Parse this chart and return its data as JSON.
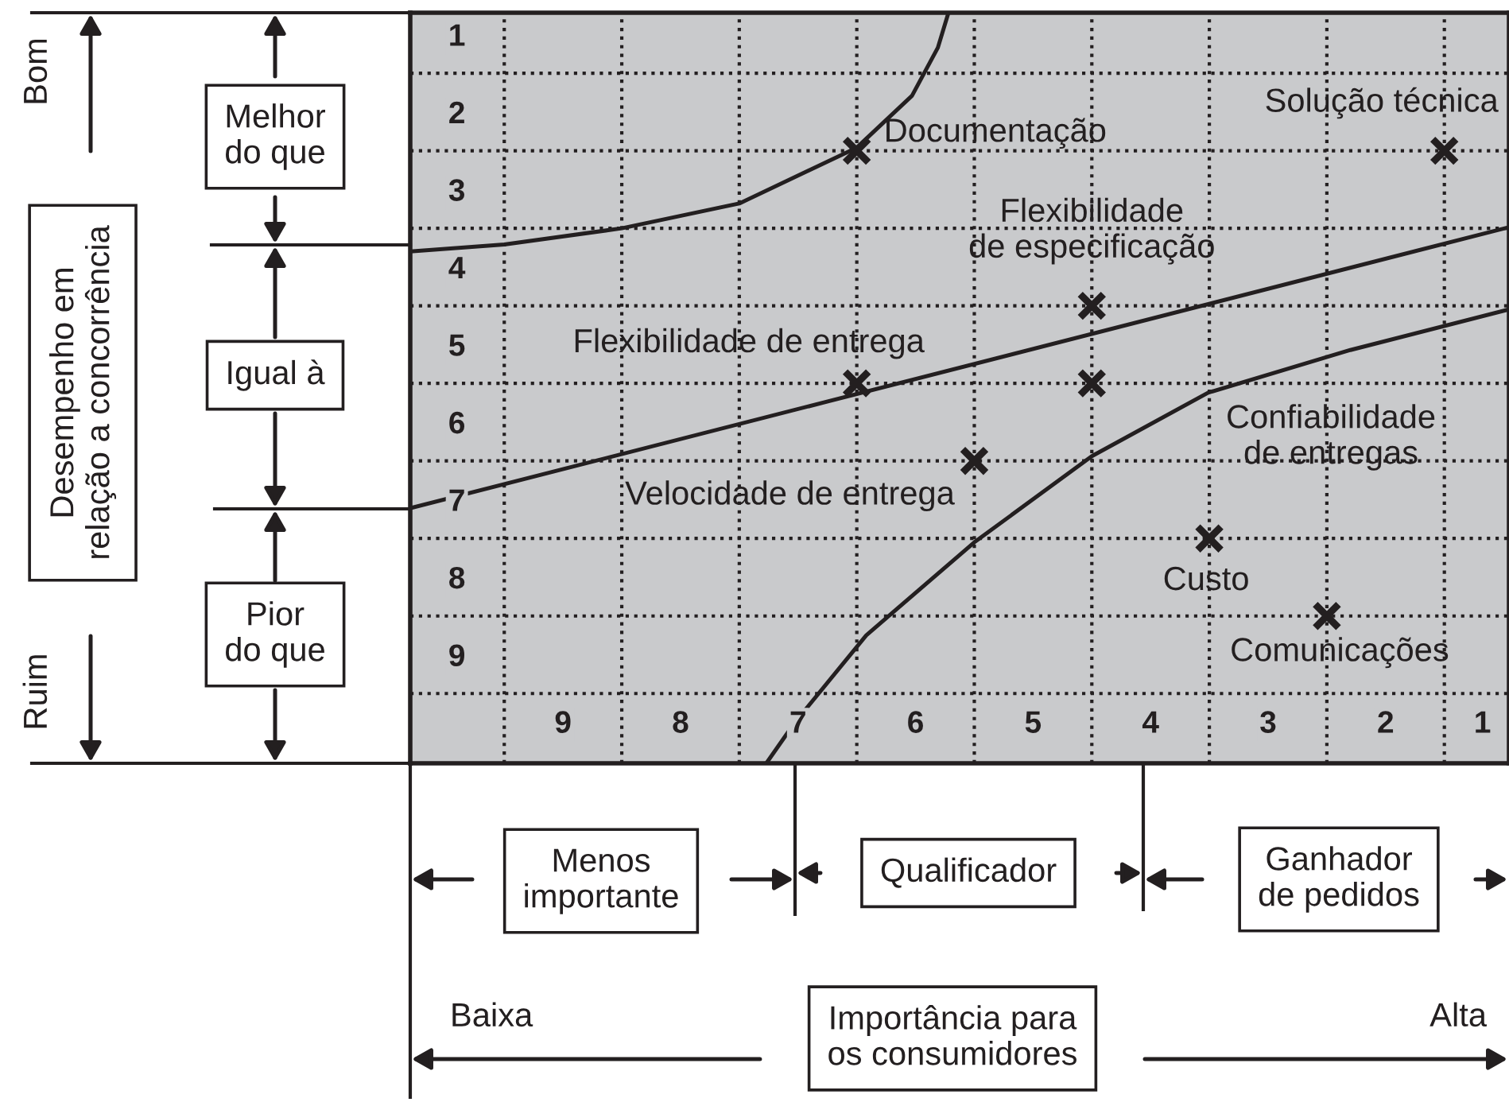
{
  "chart_data": {
    "type": "scatter",
    "xlim": [
      10.3,
      0.95
    ],
    "ylim": [
      10.4,
      0.72
    ],
    "xticks": [
      9,
      8,
      7,
      6,
      5,
      4,
      3,
      2,
      1
    ],
    "yticks": [
      1,
      2,
      3,
      4,
      5,
      6,
      7,
      8,
      9
    ],
    "grid": true,
    "series": [
      {
        "type": "scatter",
        "marker": "cross",
        "color": "#231f20",
        "x": [
          6.5,
          1.5,
          4.5,
          6.5,
          4.5,
          5.5,
          3.5,
          2.5
        ],
        "values": [
          2.5,
          2.5,
          4.5,
          5.5,
          5.5,
          6.5,
          7.5,
          8.5
        ]
      },
      {
        "type": "line",
        "color": "#231f20",
        "x": [
          10.3,
          9.5,
          8.5,
          7.5,
          6.5,
          6.03,
          5.81,
          5.72
        ],
        "values": [
          3.8,
          3.71,
          3.5,
          3.18,
          2.46,
          1.79,
          1.17,
          0.72
        ]
      },
      {
        "type": "line",
        "color": "#231f20",
        "x": [
          10.3,
          0.96
        ],
        "values": [
          7.11,
          3.49
        ]
      },
      {
        "type": "line",
        "color": "#231f20",
        "x": [
          7.27,
          7.03,
          6.42,
          5.5,
          4.5,
          3.51,
          2.3,
          0.96
        ],
        "values": [
          10.4,
          9.88,
          8.75,
          7.55,
          6.44,
          5.62,
          5.07,
          4.55
        ]
      }
    ],
    "annotations": [
      {
        "text": "Documentação",
        "x": 6.5,
        "y": 2.5
      },
      {
        "text": "Solução técnica",
        "x": 1.5,
        "y": 2.5
      },
      {
        "text": "Flexibilidade\nde especificação",
        "x": 4.5,
        "y": 4.5
      },
      {
        "text": "Flexibilidade de entrega",
        "x": 6.5,
        "y": 5.5
      },
      "Confiabilidade\nde entregas",
      {
        "text": "Velocidade de entrega",
        "x": 5.5,
        "y": 6.5
      },
      {
        "text": "Custo",
        "x": 3.5,
        "y": 7.5
      },
      {
        "text": "Comunicações",
        "x": 2.5,
        "y": 8.5
      },
      "Bom",
      "Ruim",
      "Melhor\ndo que",
      "Igual à",
      "Pior\ndo que",
      "Menos\nimportante",
      "Qualificador",
      "Ganhador\nde pedidos",
      "Baixa",
      "Alta",
      "Desempenho em\nrelação a concorrência",
      "Importância para\nos consumidores"
    ]
  }
}
